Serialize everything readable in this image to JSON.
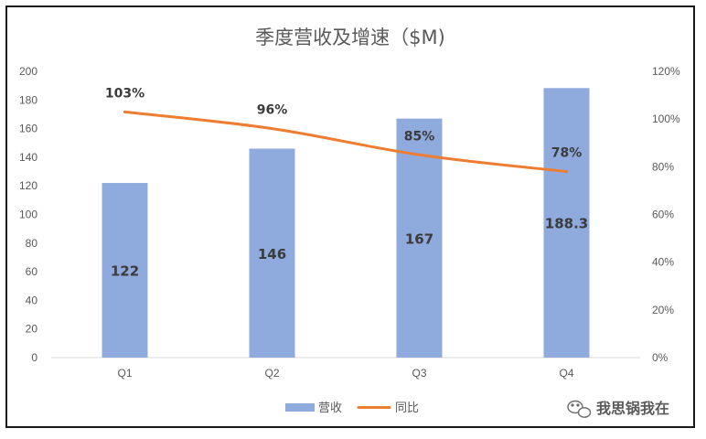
{
  "chart_data": {
    "type": "bar+line",
    "title": "季度营收及增速（$M)",
    "categories": [
      "Q1",
      "Q2",
      "Q3",
      "Q4"
    ],
    "series": [
      {
        "name": "营收",
        "type": "bar",
        "axis": "left",
        "values": [
          122,
          146,
          167,
          188.3
        ],
        "labels": [
          "122",
          "146",
          "167",
          "188.3"
        ],
        "color": "#8faadc"
      },
      {
        "name": "同比",
        "type": "line",
        "axis": "right",
        "values": [
          103,
          96,
          85,
          78
        ],
        "labels": [
          "103%",
          "96%",
          "85%",
          "78%"
        ],
        "color": "#ed7d31"
      }
    ],
    "y_left": {
      "min": 0,
      "max": 200,
      "ticks": [
        "0",
        "20",
        "40",
        "60",
        "80",
        "100",
        "120",
        "140",
        "160",
        "180",
        "200"
      ]
    },
    "y_right": {
      "min": 0,
      "max": 120,
      "ticks": [
        "0%",
        "20%",
        "40%",
        "60%",
        "80%",
        "100%",
        "120%"
      ]
    },
    "grid": false,
    "legend": "bottom-center"
  },
  "watermark": {
    "text": "我思锅我在",
    "icon": "wechat-icon"
  }
}
